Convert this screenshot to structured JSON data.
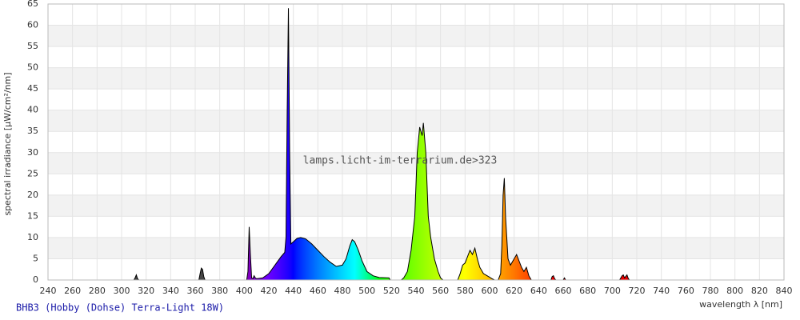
{
  "chart_data": {
    "type": "area",
    "title": "BHB3 (Hobby (Dohse) Terra-Light 18W)",
    "watermark": "lamps.licht-im-terrarium.de>323",
    "x_label": "wavelength λ [nm]",
    "y_label": "spectral irradiance [µW/cm²/nm]",
    "xlim": [
      240,
      840
    ],
    "ylim": [
      0,
      65
    ],
    "xticks": [
      240,
      260,
      280,
      300,
      320,
      340,
      360,
      380,
      400,
      420,
      440,
      460,
      480,
      500,
      520,
      540,
      560,
      580,
      600,
      620,
      640,
      660,
      680,
      700,
      720,
      740,
      760,
      780,
      800,
      820,
      840
    ],
    "yticks": [
      0,
      5,
      10,
      15,
      20,
      25,
      30,
      35,
      40,
      45,
      50,
      55,
      60,
      65
    ],
    "grid": true,
    "line_color": "#000000",
    "band_color": "#f2f2f2",
    "title_color": "#1a1aa8",
    "x": [
      240,
      310,
      311,
      312,
      313,
      314,
      363,
      364,
      365,
      366,
      367,
      368,
      402,
      403,
      404,
      405,
      406,
      407,
      408,
      409,
      410,
      415,
      420,
      425,
      430,
      433,
      434,
      435,
      436,
      437,
      438,
      440,
      443,
      446,
      450,
      455,
      460,
      465,
      470,
      475,
      480,
      483,
      486,
      488,
      490,
      493,
      496,
      500,
      505,
      510,
      518,
      519,
      528,
      530,
      533,
      536,
      539,
      541,
      543,
      545,
      546,
      548,
      550,
      552,
      555,
      558,
      560,
      562,
      574,
      576,
      578,
      580,
      582,
      584,
      586,
      588,
      590,
      592,
      595,
      598,
      602,
      604,
      607,
      609,
      610,
      611,
      612,
      613,
      615,
      617,
      620,
      622,
      624,
      626,
      628,
      630,
      632,
      634,
      650,
      651,
      652,
      653,
      654,
      660,
      661,
      662,
      706,
      708,
      709,
      710,
      712,
      713,
      714,
      840
    ],
    "values": [
      0,
      0,
      0.5,
      1.2,
      0.3,
      0,
      0,
      1.5,
      2.8,
      2.5,
      0.8,
      0,
      0,
      2,
      12.5,
      6,
      0.5,
      0.3,
      1,
      0.5,
      0.3,
      0.5,
      1.5,
      3.5,
      5.5,
      6.5,
      10,
      40,
      64,
      30,
      8.5,
      9,
      9.8,
      10,
      9.7,
      8.5,
      7,
      5.5,
      4.2,
      3.2,
      3.5,
      5,
      8,
      9.5,
      9,
      7,
      4.5,
      2,
      1,
      0.6,
      0.5,
      0,
      0,
      0.5,
      2,
      7,
      15,
      30,
      36,
      34,
      37,
      30,
      15,
      10,
      5,
      2,
      0.5,
      0,
      0,
      1.5,
      3.5,
      4,
      5.5,
      7,
      6,
      7.5,
      5,
      3,
      1.5,
      1,
      0.3,
      0,
      0,
      1.5,
      8,
      20,
      24,
      15,
      5,
      3.5,
      5,
      6,
      4.5,
      3,
      2,
      3,
      1,
      0,
      0,
      0.8,
      1,
      0.3,
      0,
      0,
      0.5,
      0,
      0,
      1,
      1.2,
      0.5,
      1.2,
      0.4,
      0,
      0
    ]
  }
}
